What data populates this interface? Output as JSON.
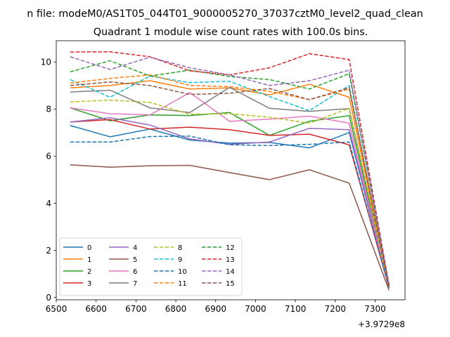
{
  "figure_title": "n file: modeM0/AS1T05_044T01_9000005270_37037cztM0_level2_quad_clean",
  "chart_data": {
    "type": "line",
    "title": "Quadrant 1 module wise count rates with 100.0s bins.",
    "xlabel": "",
    "ylabel": "",
    "x_offset_label": "+3.9729e8",
    "xlim": [
      6500,
      7375
    ],
    "ylim": [
      -0.1,
      10.9
    ],
    "x_ticks": [
      6500,
      6600,
      6700,
      6800,
      6900,
      7000,
      7100,
      7200,
      7300
    ],
    "y_ticks": [
      0,
      2,
      4,
      6,
      8,
      10
    ],
    "grid": false,
    "legend_placement": "lower-left",
    "x": [
      6535,
      6635,
      6735,
      6835,
      6935,
      7035,
      7135,
      7235,
      7335
    ],
    "series": [
      {
        "name": "0",
        "color": "#1f77b4",
        "dash": "solid",
        "values": [
          7.3,
          6.82,
          7.15,
          6.68,
          6.55,
          6.58,
          6.35,
          7.0,
          0.45
        ]
      },
      {
        "name": "1",
        "color": "#ff7f0e",
        "dash": "solid",
        "values": [
          8.9,
          9.0,
          9.2,
          8.85,
          8.9,
          8.6,
          9.05,
          8.5,
          0.5
        ]
      },
      {
        "name": "2",
        "color": "#2ca02c",
        "dash": "solid",
        "values": [
          8.05,
          7.5,
          7.75,
          7.72,
          7.85,
          6.88,
          7.48,
          7.72,
          0.45
        ]
      },
      {
        "name": "3",
        "color": "#d62728",
        "dash": "solid",
        "values": [
          7.45,
          7.55,
          7.15,
          7.23,
          7.12,
          6.88,
          6.93,
          6.48,
          0.4
        ]
      },
      {
        "name": "4",
        "color": "#9467bd",
        "dash": "solid",
        "values": [
          7.45,
          7.63,
          7.32,
          6.73,
          6.5,
          6.6,
          7.18,
          7.12,
          0.4
        ]
      },
      {
        "name": "5",
        "color": "#8c564b",
        "dash": "solid",
        "values": [
          5.63,
          5.53,
          5.59,
          5.61,
          5.3,
          5.0,
          5.42,
          4.85,
          0.3
        ]
      },
      {
        "name": "6",
        "color": "#e377c2",
        "dash": "solid",
        "values": [
          8.05,
          7.8,
          7.75,
          8.7,
          7.48,
          7.57,
          7.7,
          7.4,
          0.4
        ]
      },
      {
        "name": "7",
        "color": "#7f7f7f",
        "dash": "solid",
        "values": [
          8.72,
          8.8,
          8.05,
          7.85,
          8.92,
          8.03,
          7.9,
          8.02,
          0.45
        ]
      },
      {
        "name": "8",
        "color": "#bcbd22",
        "dash": "dashed",
        "values": [
          8.3,
          8.38,
          8.28,
          7.78,
          7.8,
          7.65,
          7.4,
          8.03,
          0.4
        ]
      },
      {
        "name": "9",
        "color": "#17becf",
        "dash": "dashed",
        "values": [
          9.25,
          8.5,
          9.4,
          9.12,
          9.18,
          8.53,
          7.93,
          9.0,
          0.45
        ]
      },
      {
        "name": "10",
        "color": "#1f77b4",
        "dash": "dashed",
        "values": [
          6.6,
          6.6,
          6.83,
          6.85,
          6.48,
          6.45,
          6.5,
          6.6,
          0.4
        ]
      },
      {
        "name": "11",
        "color": "#ff7f0e",
        "dash": "dashed",
        "values": [
          9.1,
          9.3,
          9.45,
          9.0,
          8.95,
          8.75,
          8.4,
          8.85,
          0.5
        ]
      },
      {
        "name": "12",
        "color": "#2ca02c",
        "dash": "dashed",
        "values": [
          9.58,
          10.05,
          9.4,
          9.65,
          9.38,
          9.25,
          8.85,
          9.5,
          0.55
        ]
      },
      {
        "name": "13",
        "color": "#d62728",
        "dash": "dashed",
        "values": [
          10.42,
          10.43,
          10.22,
          9.62,
          9.45,
          9.75,
          10.35,
          10.1,
          0.5
        ]
      },
      {
        "name": "14",
        "color": "#9467bd",
        "dash": "dashed",
        "values": [
          10.22,
          9.68,
          10.2,
          9.75,
          9.45,
          9.0,
          9.2,
          9.65,
          0.5
        ]
      },
      {
        "name": "15",
        "color": "#8c564b",
        "dash": "dashed",
        "values": [
          9.0,
          9.15,
          9.0,
          8.62,
          8.67,
          8.87,
          8.4,
          8.9,
          0.4
        ]
      }
    ]
  }
}
